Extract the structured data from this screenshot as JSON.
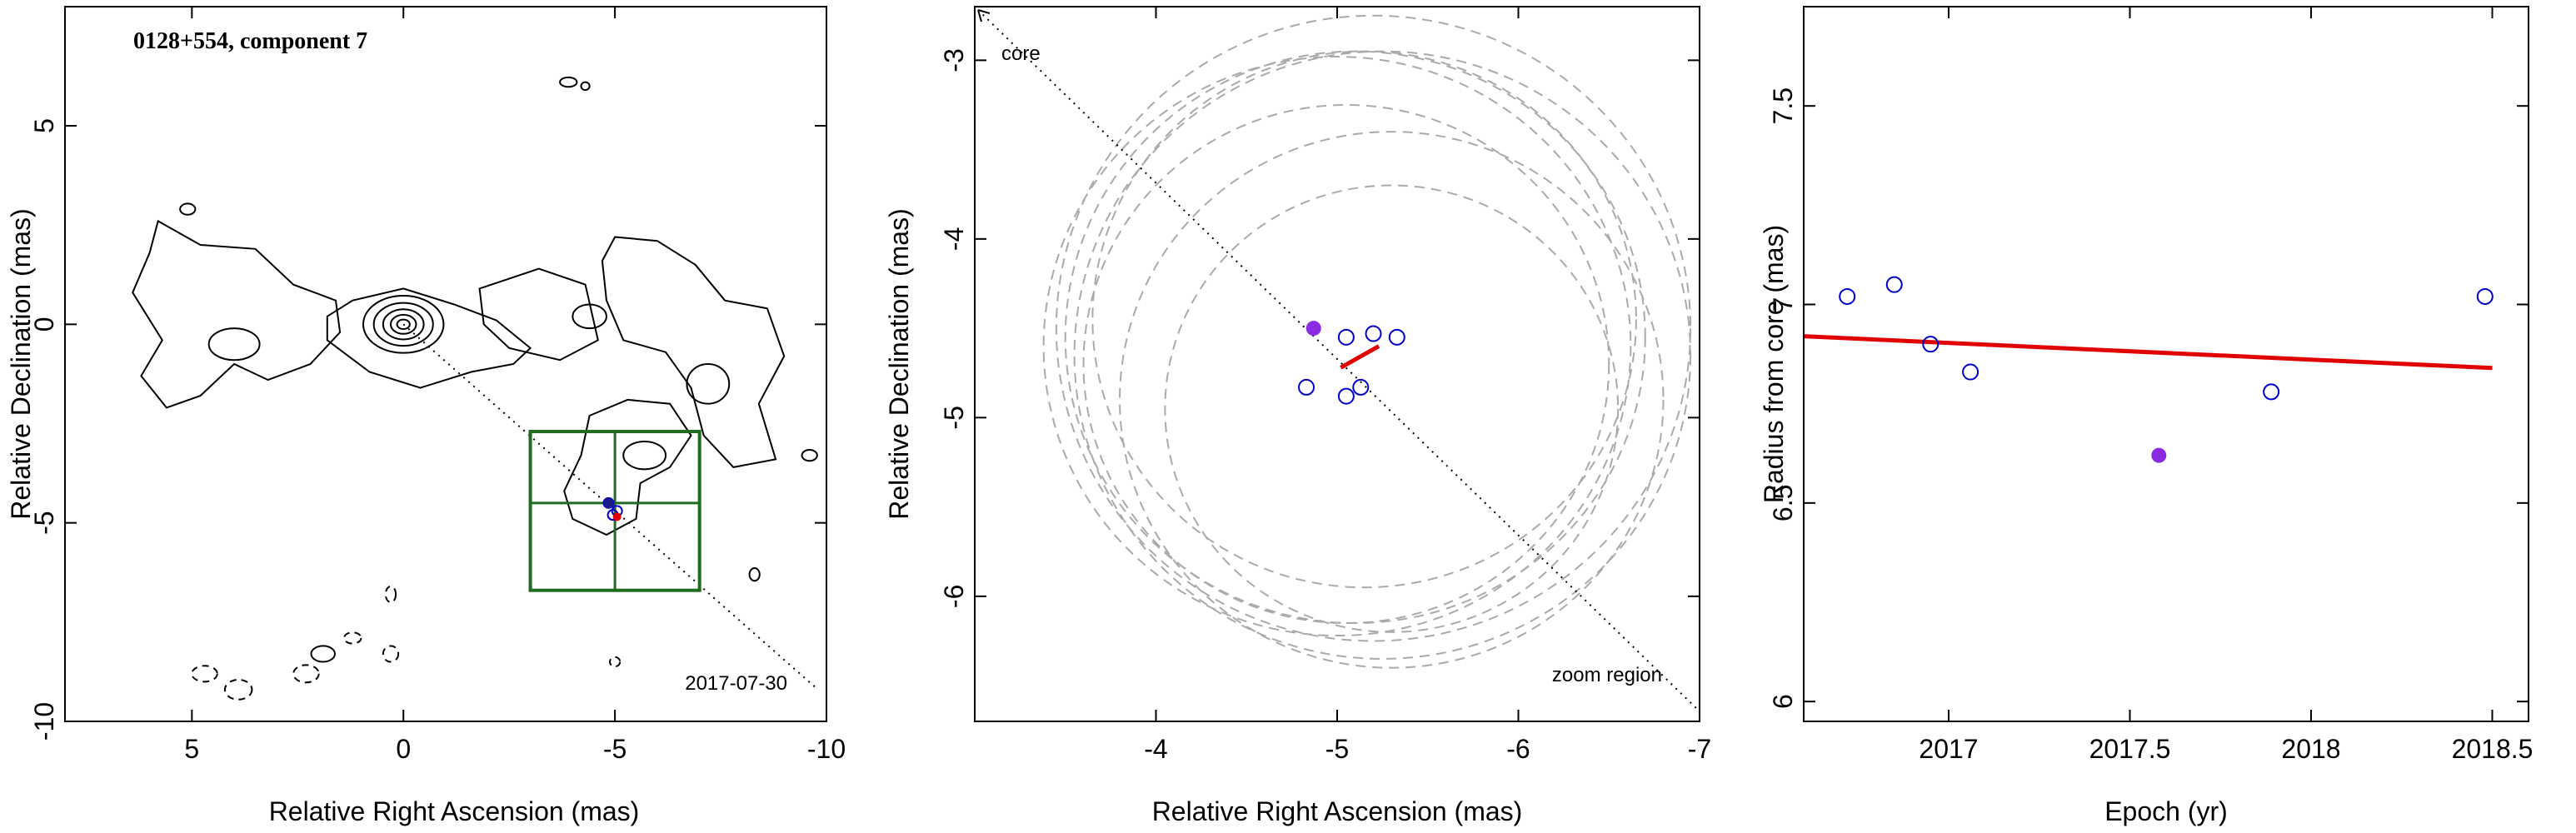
{
  "chart_data": [
    {
      "type": "contour",
      "title": "0128+554, component 7",
      "epoch_label": "2017-07-30",
      "xlabel": "Relative Right Ascension (mas)",
      "ylabel": "Relative Declination (mas)",
      "xlim": [
        8,
        -10
      ],
      "ylim": [
        -10,
        8
      ],
      "xticks": [
        5,
        0,
        -5,
        -10
      ],
      "yticks": [
        -10,
        -5,
        0,
        5
      ],
      "core": [
        0,
        0
      ],
      "direction_line_end": [
        -9.8,
        -9.2
      ],
      "zoom_box": {
        "x": [
          -3,
          -7
        ],
        "y": [
          -2.7,
          -6.7
        ],
        "cross": [
          -5,
          -4.5
        ]
      },
      "components": [
        [
          -4.85,
          -4.5
        ],
        [
          -5.05,
          -4.7
        ],
        [
          -4.95,
          -4.8
        ]
      ],
      "red_marker": [
        -5.05,
        -4.85
      ],
      "colors": {
        "contour": "#000000",
        "zoom_box": "#1f6b1f",
        "marker": "#e00000",
        "point": "#0000cc"
      }
    },
    {
      "type": "scatter",
      "xlabel": "Relative Right Ascension (mas)",
      "ylabel": "Relative Declination (mas)",
      "xlim": [
        -3,
        -7
      ],
      "ylim": [
        -6.7,
        -2.7
      ],
      "xticks": [
        -4,
        -5,
        -6,
        -7
      ],
      "yticks": [
        -6,
        -5,
        -4,
        -3
      ],
      "core_label": "core",
      "zoom_label": "zoom region",
      "open_points": [
        {
          "x": -5.05,
          "y": -4.55
        },
        {
          "x": -5.2,
          "y": -4.53
        },
        {
          "x": -5.33,
          "y": -4.55
        },
        {
          "x": -4.83,
          "y": -4.83
        },
        {
          "x": -5.05,
          "y": -4.88
        },
        {
          "x": -5.13,
          "y": -4.83
        }
      ],
      "filled_point": {
        "x": -4.87,
        "y": -4.5
      },
      "fit_segment": [
        [
          -5.02,
          -4.72
        ],
        [
          -5.23,
          -4.6
        ]
      ],
      "beam_circles": [
        {
          "cx": -5.15,
          "cy": -4.45,
          "r": 1.5
        },
        {
          "cx": -5.1,
          "cy": -4.55,
          "r": 1.6
        },
        {
          "cx": -5.25,
          "cy": -4.65,
          "r": 1.7
        },
        {
          "cx": -5.05,
          "cy": -4.7,
          "r": 1.45
        },
        {
          "cx": -5.3,
          "cy": -4.9,
          "r": 1.5
        },
        {
          "cx": -5.2,
          "cy": -4.5,
          "r": 1.75
        },
        {
          "cx": -5.0,
          "cy": -4.6,
          "r": 1.62
        },
        {
          "cx": -5.3,
          "cy": -4.95,
          "r": 1.25
        }
      ],
      "colors": {
        "circles": "#aaaaaa",
        "points": "#0000cc",
        "filled": "#8a2be2",
        "fit": "#e00000"
      }
    },
    {
      "type": "scatter",
      "xlabel": "Epoch (yr)",
      "ylabel": "Radius from core (mas)",
      "xlim": [
        16.6,
        18.6
      ],
      "ylim": [
        5.95,
        7.75
      ],
      "xtick_values": [
        17,
        17.5,
        18,
        18.5
      ],
      "xtick_labels": [
        "2017",
        "2017.5",
        "2018",
        "2018.5"
      ],
      "yticks": [
        6,
        6.5,
        7,
        7.5
      ],
      "open_points": [
        {
          "x": 16.72,
          "y": 7.02
        },
        {
          "x": 16.85,
          "y": 7.05
        },
        {
          "x": 16.95,
          "y": 6.9
        },
        {
          "x": 17.06,
          "y": 6.83
        },
        {
          "x": 17.89,
          "y": 6.78
        },
        {
          "x": 18.48,
          "y": 7.02
        }
      ],
      "filled_point": {
        "x": 17.58,
        "y": 6.62
      },
      "fit_line": [
        [
          16.6,
          6.92
        ],
        [
          18.5,
          6.84
        ]
      ],
      "colors": {
        "points": "#0000cc",
        "filled": "#8a2be2",
        "fit": "#e00000"
      }
    }
  ]
}
